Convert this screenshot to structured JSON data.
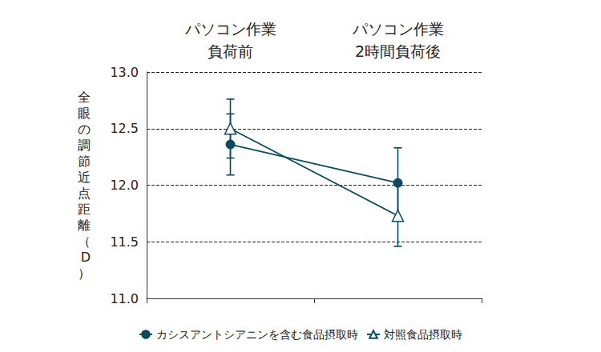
{
  "chart_data": {
    "type": "line",
    "y_label": "全眼の調節近点距離（D）",
    "categories": [
      "パソコン作業\n負荷前",
      "パソコン作業\n2時間負荷後"
    ],
    "series": [
      {
        "name": "カシスアントシアニンを含む食品摂取時",
        "color": "#0d4a5e",
        "marker": "circle",
        "values": [
          12.36,
          12.02
        ],
        "errors": [
          0.27,
          0.31
        ]
      },
      {
        "name": "対照食品摂取時",
        "color": "#0d4a5e",
        "marker": "triangle_open",
        "values": [
          12.5,
          11.73
        ],
        "errors": [
          0.26,
          0.27
        ]
      }
    ],
    "ylim": [
      11,
      13
    ],
    "yticks": [
      {
        "value": 11,
        "label": "11.0"
      },
      11.5,
      {
        "value": 12,
        "label": "12.0"
      },
      12.5,
      {
        "value": 13,
        "label": "13.0"
      }
    ],
    "grid": true,
    "legend": "bottom"
  }
}
